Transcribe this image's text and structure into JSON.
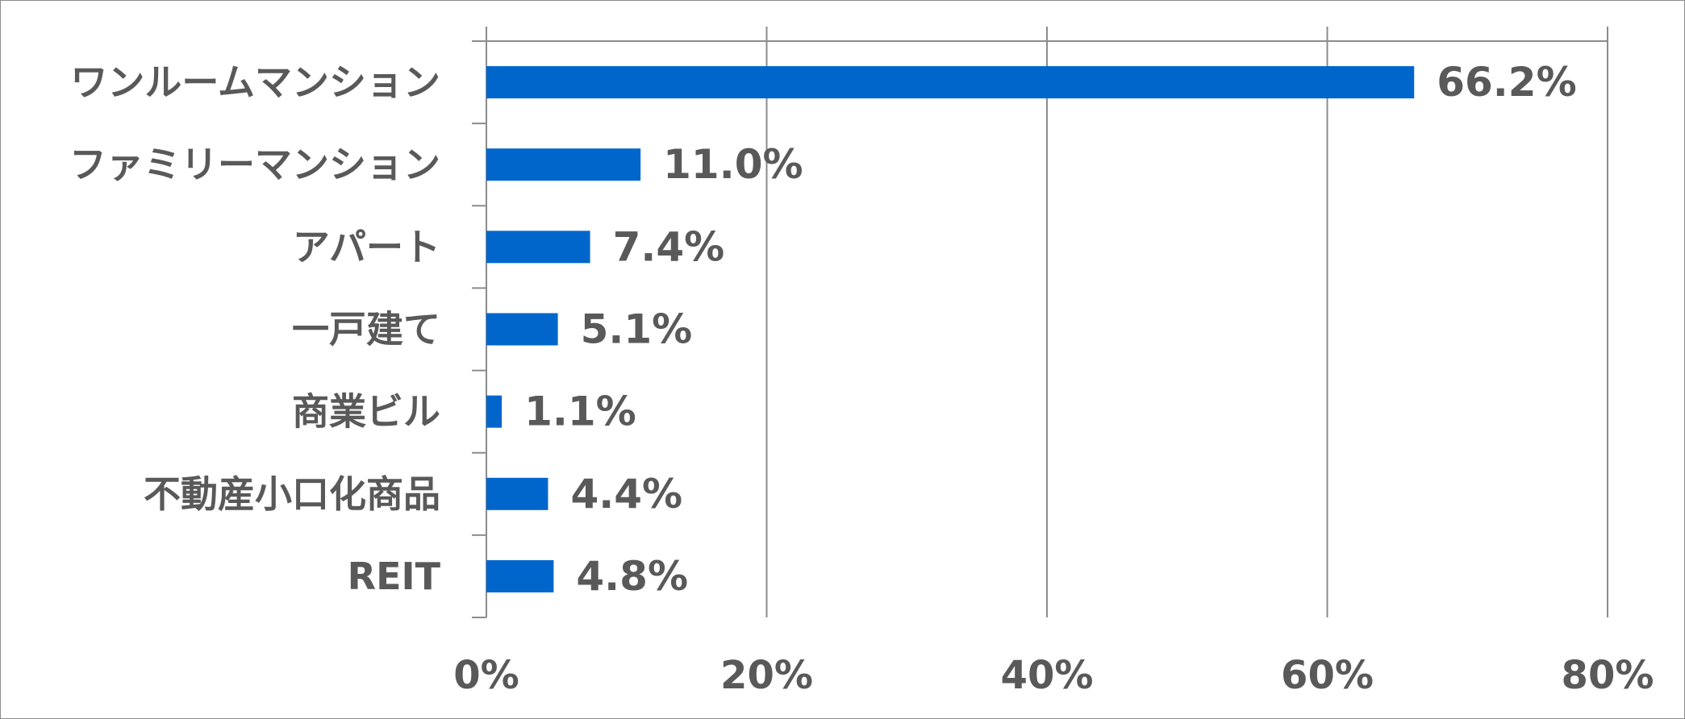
{
  "chart_data": {
    "type": "bar",
    "orientation": "horizontal",
    "categories": [
      "ワンルームマンション",
      "ファミリーマンション",
      "アパート",
      "一戸建て",
      "商業ビル",
      "不動産小口化商品",
      "REIT"
    ],
    "values": [
      66.2,
      11.0,
      7.4,
      5.1,
      1.1,
      4.4,
      4.8
    ],
    "value_labels": [
      "66.2%",
      "11.0%",
      "7.4%",
      "5.1%",
      "1.1%",
      "4.4%",
      "4.8%"
    ],
    "x_ticks": [
      0,
      20,
      40,
      60,
      80
    ],
    "x_tick_labels": [
      "0%",
      "20%",
      "40%",
      "60%",
      "80%"
    ],
    "xlim": [
      0,
      80
    ],
    "grid": true,
    "legend": "none",
    "title": "",
    "xlabel": "",
    "ylabel": "",
    "colors": {
      "bar": "#0066cc",
      "text": "#595959",
      "grid": "#8c8c8c",
      "border": "#8c8c8c"
    }
  }
}
